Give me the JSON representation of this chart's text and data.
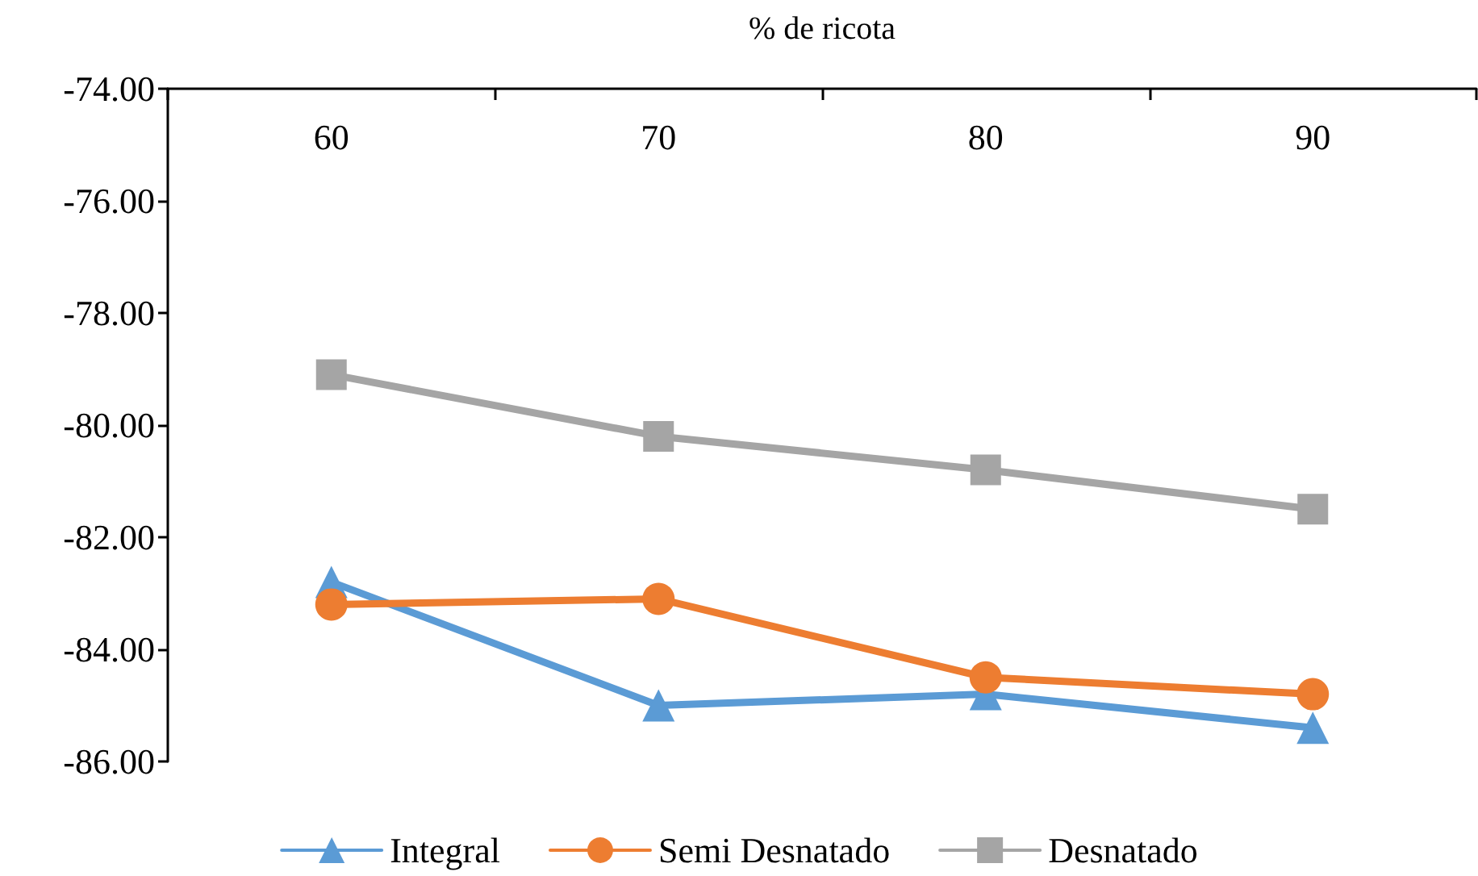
{
  "chart_data": {
    "type": "line",
    "xlabel": "% de ricota",
    "categories": [
      "60",
      "70",
      "80",
      "90"
    ],
    "series": [
      {
        "name": "Integral",
        "color": "#5b9bd5",
        "marker": "triangle",
        "values": [
          -82.8,
          -85.0,
          -84.8,
          -85.4
        ]
      },
      {
        "name": "Semi Desnatado",
        "color": "#ed7d31",
        "marker": "circle",
        "values": [
          -83.2,
          -83.1,
          -84.5,
          -84.8
        ]
      },
      {
        "name": "Desnatado",
        "color": "#a5a5a5",
        "marker": "square",
        "values": [
          -79.1,
          -80.2,
          -80.8,
          -81.5
        ]
      }
    ],
    "ylim": [
      -86,
      -74
    ],
    "yticks": [
      {
        "value": -86,
        "label": "-86.00"
      },
      {
        "value": -84,
        "label": "-84.00"
      },
      {
        "value": -82,
        "label": "-82.00"
      },
      {
        "value": -80,
        "label": "-80.00"
      },
      {
        "value": -78,
        "label": "-78.00"
      },
      {
        "value": -76,
        "label": "-76.00"
      },
      {
        "value": -74,
        "label": "-74.00"
      }
    ],
    "grid": false,
    "legend": "bottom",
    "line_style": "solid"
  }
}
